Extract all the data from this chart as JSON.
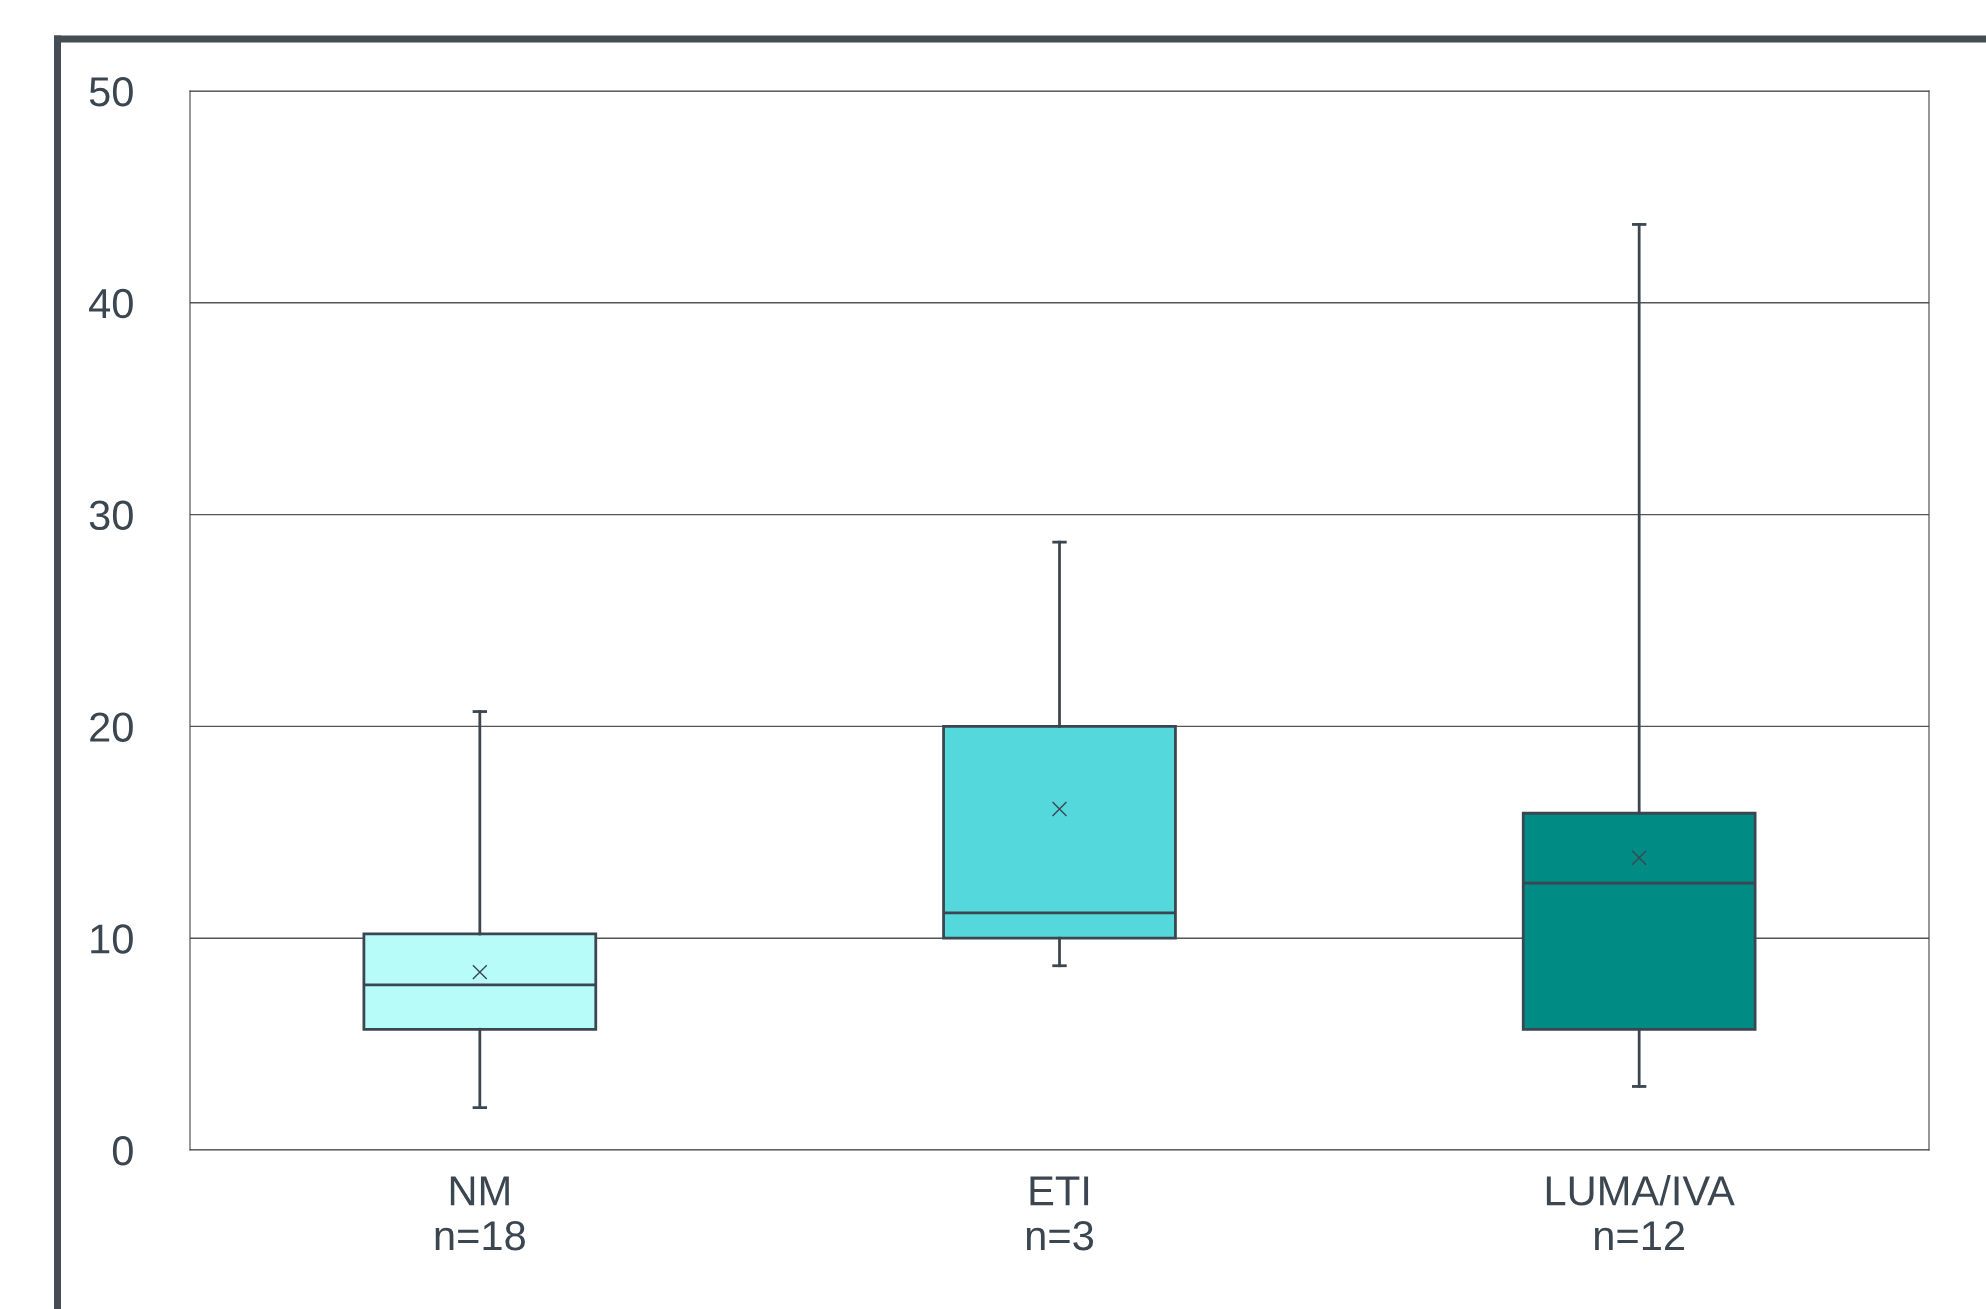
{
  "chart_data": {
    "type": "box",
    "categories": [
      "NM\nn=18",
      "ETI\nn=3",
      "LUMA/IVA\nn=12"
    ],
    "colors": [
      "#b8fcfa",
      "#55d8dc",
      "#008c84"
    ],
    "boxes": [
      {
        "low": 2,
        "q1": 5.7,
        "median": 7.8,
        "q3": 10.2,
        "high": 20.7,
        "mean": 8.4
      },
      {
        "low": 8.7,
        "q1": 10,
        "median": 11.2,
        "q3": 20,
        "high": 28.7,
        "mean": 16.1
      },
      {
        "low": 3,
        "q1": 5.7,
        "median": 12.6,
        "q3": 15.9,
        "high": 43.7,
        "mean": 13.8
      }
    ],
    "ylim": [
      0,
      50
    ],
    "yticks": [
      0,
      10,
      20,
      30,
      40,
      50
    ],
    "grid": "y",
    "marker": "cross"
  }
}
